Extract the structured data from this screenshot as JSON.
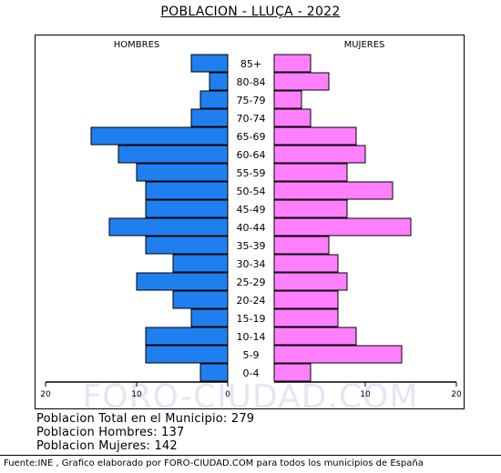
{
  "title": "POBLACION - LLUÇA - 2022",
  "watermark": "FORO-CIUDAD.COM",
  "stats": {
    "total": "Poblacion Total en el Municipio: 279",
    "men": "Poblacion Hombres: 137",
    "women": "Poblacion Mujeres: 142"
  },
  "footer": "Fuente:INE , Grafico elaborado por FORO-CIUDAD.COM para todos los municipios de España",
  "chart_data": {
    "type": "bar",
    "orientation": "horizontal-pyramid",
    "left_label": "HOMBRES",
    "right_label": "MUJERES",
    "categories": [
      "85+",
      "80-84",
      "75-79",
      "70-74",
      "65-69",
      "60-64",
      "55-59",
      "50-54",
      "45-49",
      "40-44",
      "35-39",
      "30-34",
      "25-29",
      "20-24",
      "15-19",
      "10-14",
      "5-9",
      "0-4"
    ],
    "series": [
      {
        "name": "HOMBRES",
        "color": "#1f7fef",
        "values": [
          4,
          2,
          3,
          4,
          15,
          12,
          10,
          9,
          9,
          13,
          9,
          6,
          10,
          6,
          4,
          9,
          9,
          3
        ]
      },
      {
        "name": "MUJERES",
        "color": "#ff80ff",
        "values": [
          4,
          6,
          3,
          4,
          9,
          10,
          8,
          13,
          8,
          15,
          6,
          7,
          8,
          7,
          7,
          9,
          14,
          4
        ]
      }
    ],
    "xlim": [
      0,
      20
    ],
    "xticks": [
      20,
      10,
      0,
      10,
      20
    ],
    "grid": false
  }
}
